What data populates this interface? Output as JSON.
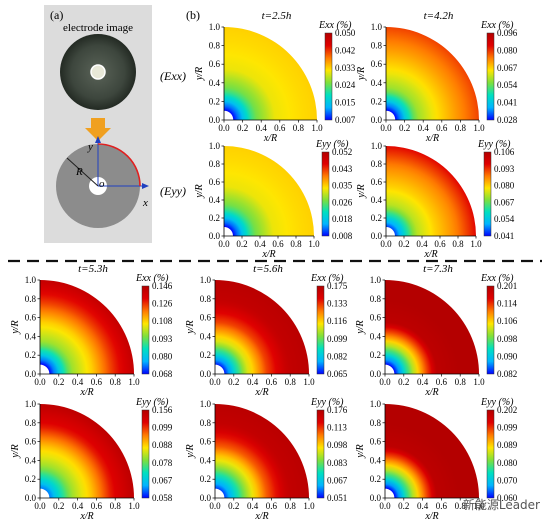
{
  "panel_a": {
    "label": "(a)",
    "photo_caption": "electrode image",
    "axis_y": "y",
    "axis_x": "x",
    "radius_label": "R",
    "origin_label": "o",
    "arrow_color": "#f0a020"
  },
  "panel_b": {
    "label": "(b)"
  },
  "row_labels": {
    "exx": "(Exx)",
    "eyy": "(Eyy)"
  },
  "axes": {
    "xlabel": "x/R",
    "ylabel": "y/R",
    "ticks": [
      "0.0",
      "0.2",
      "0.4",
      "0.6",
      "0.8",
      "1.0"
    ],
    "xlim": [
      0,
      1.0
    ],
    "ylim": [
      0,
      1.0
    ]
  },
  "colormap": [
    "#0000ff",
    "#00b4ff",
    "#00e0c0",
    "#7ee03c",
    "#ffe600",
    "#ff7a00",
    "#e00000",
    "#b40000"
  ],
  "chart_data": [
    {
      "type": "heatmap",
      "title": "t=2.5h",
      "strain": "Exx",
      "unit": "(%)",
      "colorbar_ticks": [
        "0.050",
        "0.042",
        "0.033",
        "0.024",
        "0.015",
        "0.007"
      ],
      "profile": [
        0.0,
        0.4,
        0.55,
        0.58,
        0.6
      ]
    },
    {
      "type": "heatmap",
      "title": "t=4.2h",
      "strain": "Exx",
      "unit": "(%)",
      "colorbar_ticks": [
        "0.096",
        "0.080",
        "0.067",
        "0.054",
        "0.041",
        "0.028"
      ],
      "profile": [
        0.0,
        0.45,
        0.58,
        0.68,
        0.78
      ]
    },
    {
      "type": "heatmap",
      "title": "",
      "strain": "Eyy",
      "unit": "(%)",
      "colorbar_ticks": [
        "0.052",
        "0.043",
        "0.035",
        "0.026",
        "0.018",
        "0.008"
      ],
      "profile": [
        0.0,
        0.4,
        0.55,
        0.58,
        0.6
      ]
    },
    {
      "type": "heatmap",
      "title": "",
      "strain": "Eyy",
      "unit": "(%)",
      "colorbar_ticks": [
        "0.106",
        "0.093",
        "0.080",
        "0.067",
        "0.054",
        "0.041"
      ],
      "profile": [
        0.05,
        0.48,
        0.6,
        0.7,
        0.85
      ]
    },
    {
      "type": "heatmap",
      "title": "t=5.3h",
      "strain": "Exx",
      "unit": "(%)",
      "colorbar_ticks": [
        "0.146",
        "0.126",
        "0.108",
        "0.093",
        "0.080",
        "0.068"
      ],
      "profile": [
        0.0,
        0.45,
        0.6,
        0.8,
        0.95
      ]
    },
    {
      "type": "heatmap",
      "title": "t=5.6h",
      "strain": "Exx",
      "unit": "(%)",
      "colorbar_ticks": [
        "0.175",
        "0.133",
        "0.116",
        "0.099",
        "0.082",
        "0.065"
      ],
      "profile": [
        0.02,
        0.5,
        0.78,
        0.95,
        0.98
      ]
    },
    {
      "type": "heatmap",
      "title": "t=7.3h",
      "strain": "Exx",
      "unit": "(%)",
      "colorbar_ticks": [
        "0.201",
        "0.114",
        "0.106",
        "0.098",
        "0.090",
        "0.082"
      ],
      "profile": [
        0.0,
        0.55,
        0.97,
        1.0,
        1.0
      ]
    },
    {
      "type": "heatmap",
      "title": "",
      "strain": "Eyy",
      "unit": "(%)",
      "colorbar_ticks": [
        "0.156",
        "0.099",
        "0.088",
        "0.078",
        "0.067",
        "0.058"
      ],
      "profile": [
        0.1,
        0.45,
        0.62,
        0.85,
        0.97
      ]
    },
    {
      "type": "heatmap",
      "title": "",
      "strain": "Eyy",
      "unit": "(%)",
      "colorbar_ticks": [
        "0.176",
        "0.113",
        "0.098",
        "0.083",
        "0.067",
        "0.051"
      ],
      "profile": [
        0.05,
        0.45,
        0.75,
        0.95,
        0.98
      ]
    },
    {
      "type": "heatmap",
      "title": "",
      "strain": "Eyy",
      "unit": "(%)",
      "colorbar_ticks": [
        "0.202",
        "0.099",
        "0.089",
        "0.080",
        "0.070",
        "0.060"
      ],
      "profile": [
        0.0,
        0.55,
        0.97,
        1.0,
        1.0
      ]
    }
  ],
  "watermark": "新能源Leader"
}
